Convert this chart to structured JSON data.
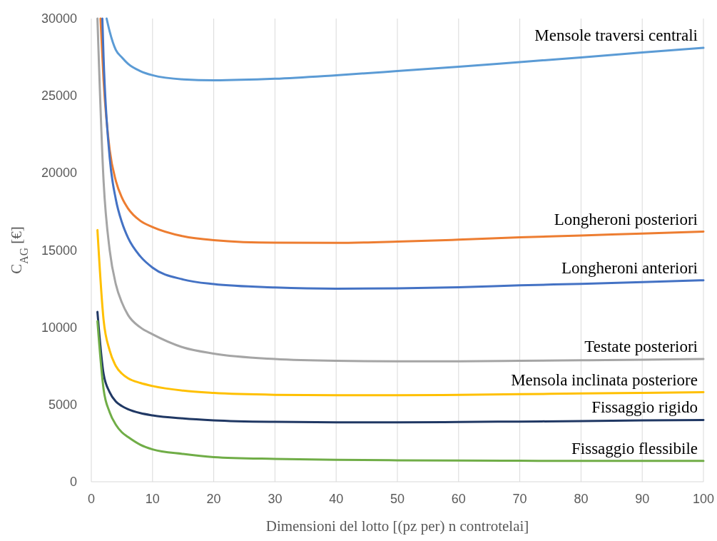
{
  "chart_data": {
    "type": "line",
    "xlabel": "Dimensioni del lotto [(pz per) n controtelai]",
    "ylabel": "C$_{AG}$ [€]",
    "xlim": [
      0,
      100
    ],
    "ylim": [
      0,
      30000
    ],
    "xticks": [
      0,
      10,
      20,
      30,
      40,
      50,
      60,
      70,
      80,
      90,
      100
    ],
    "yticks": [
      0,
      5000,
      10000,
      15000,
      20000,
      25000,
      30000
    ],
    "grid": "x",
    "legend": false,
    "line_style": "solid",
    "marker": "none",
    "series": [
      {
        "name": "Mensole traversi centrali",
        "color": "#5b9bd5",
        "x": [
          2.5,
          3,
          4,
          5,
          6,
          8,
          10,
          15,
          20,
          30,
          40,
          50,
          60,
          70,
          80,
          90,
          100
        ],
        "values": [
          30000,
          29160,
          27970,
          27480,
          27070,
          26600,
          26330,
          26060,
          26000,
          26100,
          26330,
          26600,
          26880,
          27180,
          27480,
          27800,
          28100
        ]
      },
      {
        "name": "Longheroni posteriori",
        "color": "#ed7d31",
        "x": [
          1.5,
          2,
          3,
          4,
          5,
          6,
          8,
          10,
          15,
          20,
          30,
          40,
          50,
          60,
          70,
          80,
          90,
          100
        ],
        "values": [
          30000,
          26000,
          21500,
          19500,
          18400,
          17700,
          16900,
          16500,
          15900,
          15650,
          15480,
          15470,
          15550,
          15680,
          15830,
          15950,
          16080,
          16200
        ]
      },
      {
        "name": "Longheroni anteriori",
        "color": "#4472c4",
        "x": [
          1.8,
          2,
          3,
          4,
          5,
          6,
          8,
          10,
          15,
          20,
          30,
          40,
          50,
          60,
          70,
          80,
          90,
          100
        ],
        "values": [
          30000,
          27500,
          21000,
          18300,
          16800,
          15800,
          14600,
          13870,
          13100,
          12800,
          12580,
          12500,
          12530,
          12600,
          12720,
          12820,
          12930,
          13050
        ]
      },
      {
        "name": "Testate posteriori",
        "color": "#a5a5a5",
        "x": [
          1,
          2,
          3,
          4,
          5,
          6,
          8,
          10,
          15,
          20,
          30,
          40,
          50,
          60,
          70,
          80,
          90,
          100
        ],
        "values": [
          30000,
          19500,
          15000,
          12800,
          11600,
          10800,
          10000,
          9550,
          8700,
          8300,
          7950,
          7830,
          7800,
          7800,
          7830,
          7870,
          7910,
          7950
        ]
      },
      {
        "name": "Mensola inclinata posteriore",
        "color": "#ffc000",
        "x": [
          1,
          2,
          3,
          4,
          5,
          6,
          8,
          10,
          15,
          20,
          30,
          40,
          50,
          60,
          70,
          80,
          90,
          100
        ],
        "values": [
          16300,
          10500,
          8500,
          7500,
          7000,
          6700,
          6400,
          6200,
          5900,
          5750,
          5630,
          5600,
          5600,
          5630,
          5670,
          5720,
          5760,
          5800
        ]
      },
      {
        "name": "Fissaggio rigido",
        "color": "#203864",
        "x": [
          1,
          2,
          3,
          4,
          5,
          6,
          8,
          10,
          15,
          20,
          30,
          40,
          50,
          60,
          70,
          80,
          90,
          100
        ],
        "values": [
          11000,
          7000,
          5800,
          5200,
          4900,
          4700,
          4450,
          4300,
          4100,
          3980,
          3880,
          3850,
          3850,
          3870,
          3900,
          3930,
          3970,
          4000
        ]
      },
      {
        "name": "Fissaggio flessibile",
        "color": "#70ad47",
        "x": [
          1,
          2,
          3,
          4,
          5,
          6,
          8,
          10,
          15,
          20,
          30,
          40,
          50,
          60,
          70,
          80,
          90,
          100
        ],
        "values": [
          10400,
          6000,
          4500,
          3700,
          3200,
          2900,
          2400,
          2100,
          1800,
          1600,
          1480,
          1420,
          1390,
          1370,
          1360,
          1350,
          1350,
          1350
        ]
      }
    ]
  }
}
